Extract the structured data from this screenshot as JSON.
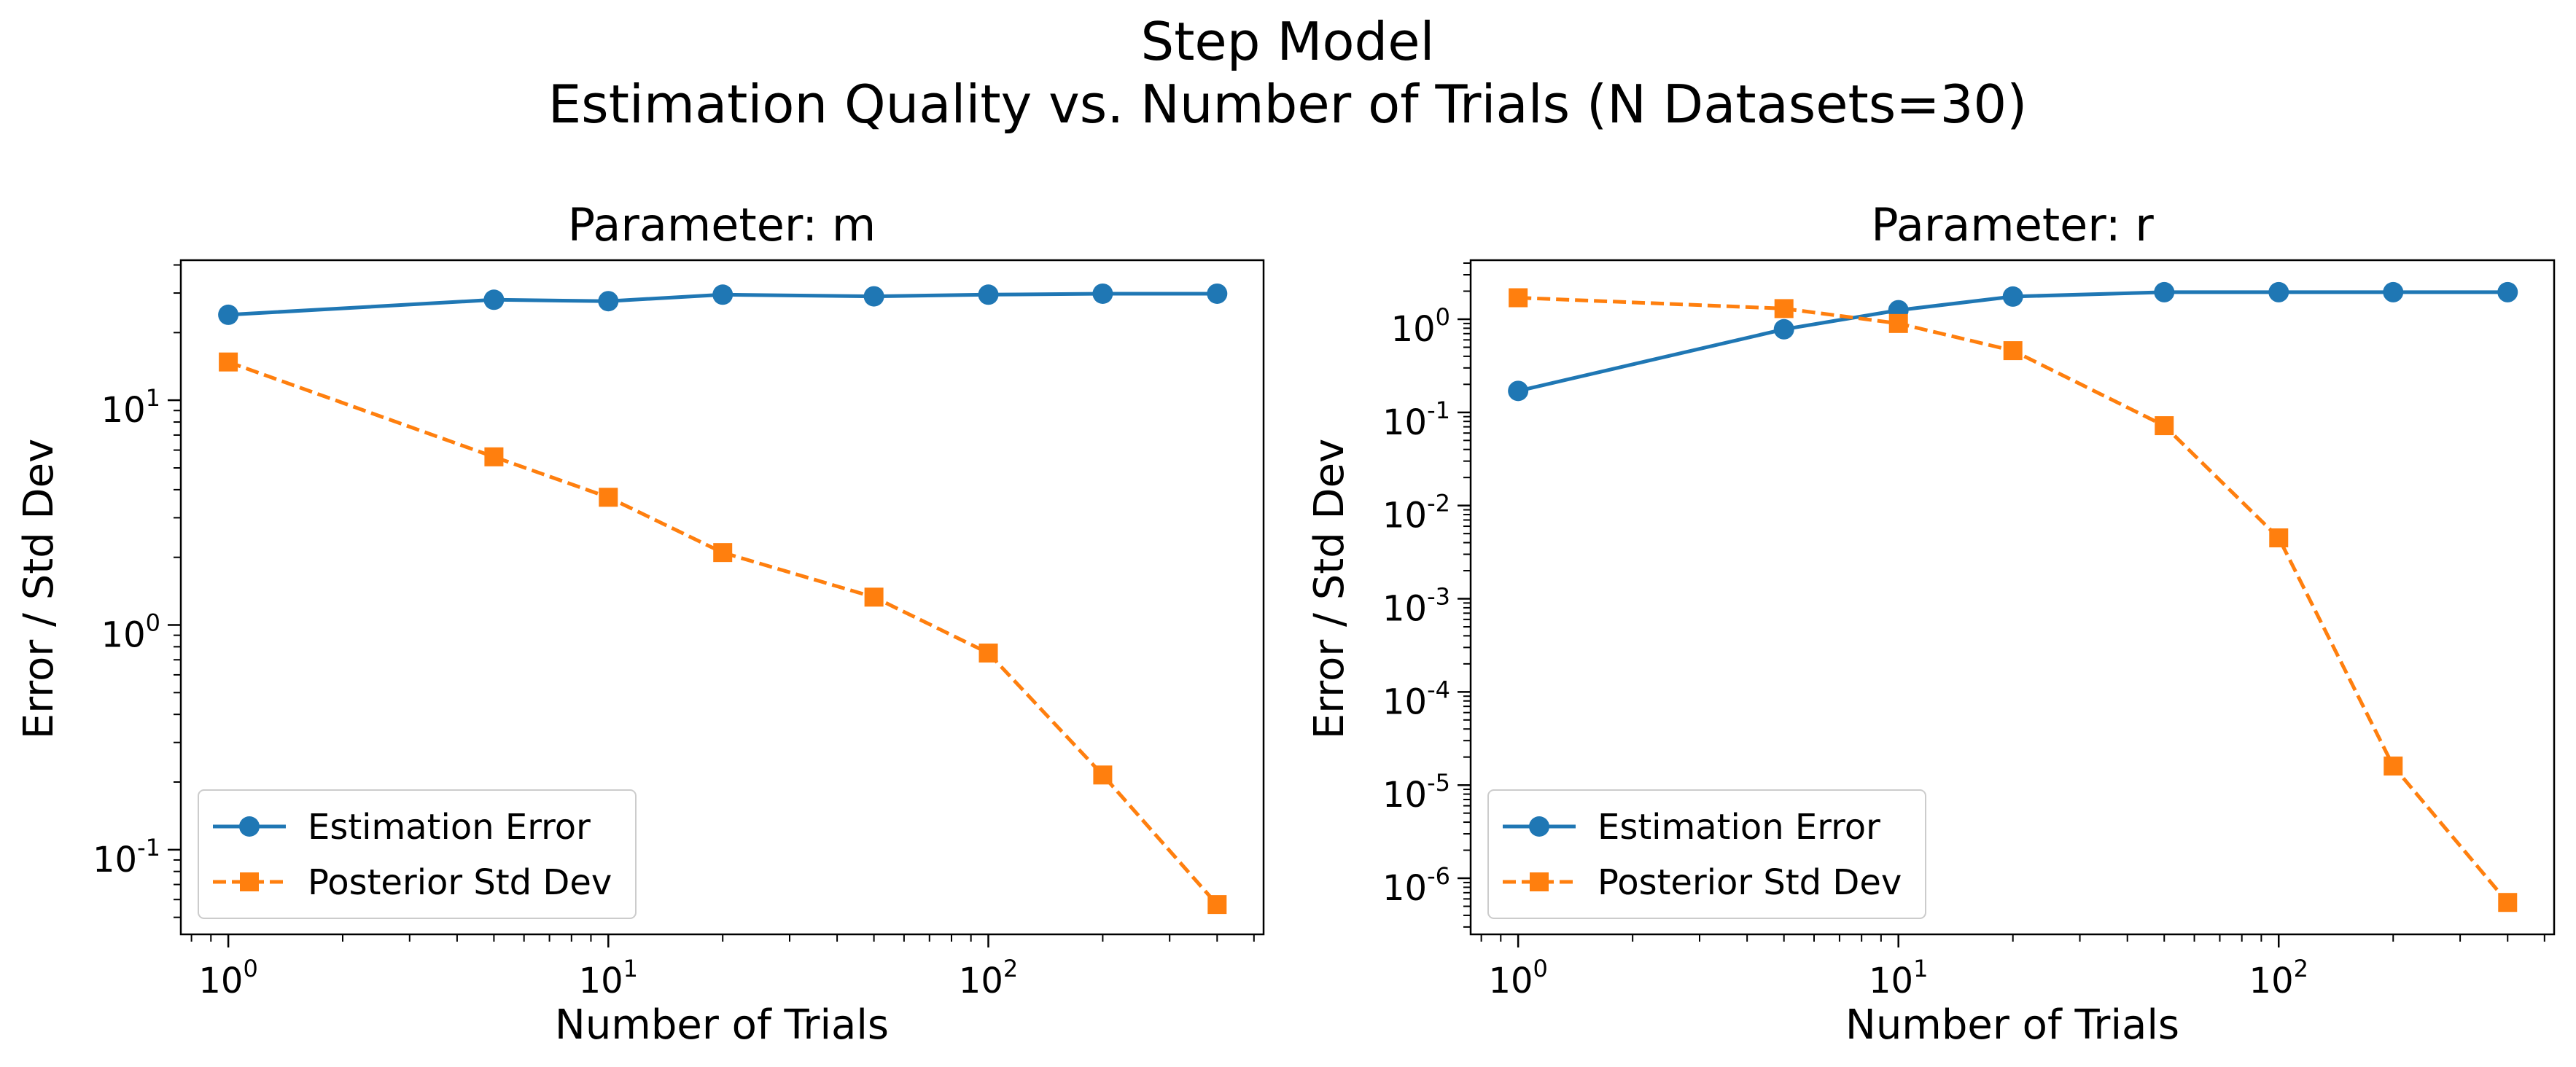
{
  "figure": {
    "title_line1": "Step Model",
    "title_line2": "Estimation Quality vs. Number of Trials (N Datasets=30)"
  },
  "colors": {
    "estimation_error": "#1f77b4",
    "posterior_std": "#ff7f0e"
  },
  "chart_data": [
    {
      "type": "line",
      "title": "Parameter: m",
      "xlabel": "Number of Trials",
      "ylabel": "Error / Std Dev",
      "xscale": "log",
      "yscale": "log",
      "xlim": [
        0.75,
        530
      ],
      "ylim": [
        0.042,
        42
      ],
      "x": [
        1,
        5,
        10,
        20,
        50,
        100,
        200,
        400
      ],
      "xticks": [
        1,
        10,
        100
      ],
      "yticks": [
        0.1,
        1,
        10
      ],
      "series": [
        {
          "name": "Estimation Error",
          "marker": "circle",
          "linestyle": "solid",
          "values": [
            24.0,
            28.0,
            27.6,
            29.5,
            29.0,
            29.5,
            29.8,
            29.8
          ]
        },
        {
          "name": "Posterior Std Dev",
          "marker": "square",
          "linestyle": "dashed",
          "values": [
            14.8,
            5.6,
            3.7,
            2.1,
            1.33,
            0.75,
            0.215,
            0.057
          ]
        }
      ],
      "legend": "lower-left",
      "grid": false
    },
    {
      "type": "line",
      "title": "Parameter: r",
      "xlabel": "Number of Trials",
      "ylabel": "Error / Std Dev",
      "xscale": "log",
      "yscale": "log",
      "xlim": [
        0.75,
        530
      ],
      "ylim": [
        2.5e-07,
        4.3
      ],
      "x": [
        1,
        5,
        10,
        20,
        50,
        100,
        200,
        400
      ],
      "xticks": [
        1,
        10,
        100
      ],
      "yticks": [
        1e-06,
        1e-05,
        0.0001,
        0.001,
        0.01,
        0.1,
        1
      ],
      "series": [
        {
          "name": "Estimation Error",
          "marker": "circle",
          "linestyle": "solid",
          "values": [
            0.17,
            0.78,
            1.25,
            1.75,
            1.95,
            1.95,
            1.95,
            1.95
          ]
        },
        {
          "name": "Posterior Std Dev",
          "marker": "square",
          "linestyle": "dashed",
          "values": [
            1.7,
            1.3,
            0.9,
            0.46,
            0.072,
            0.0045,
            1.6e-05,
            5.5e-07
          ]
        }
      ],
      "legend": "lower-left",
      "grid": false
    }
  ]
}
